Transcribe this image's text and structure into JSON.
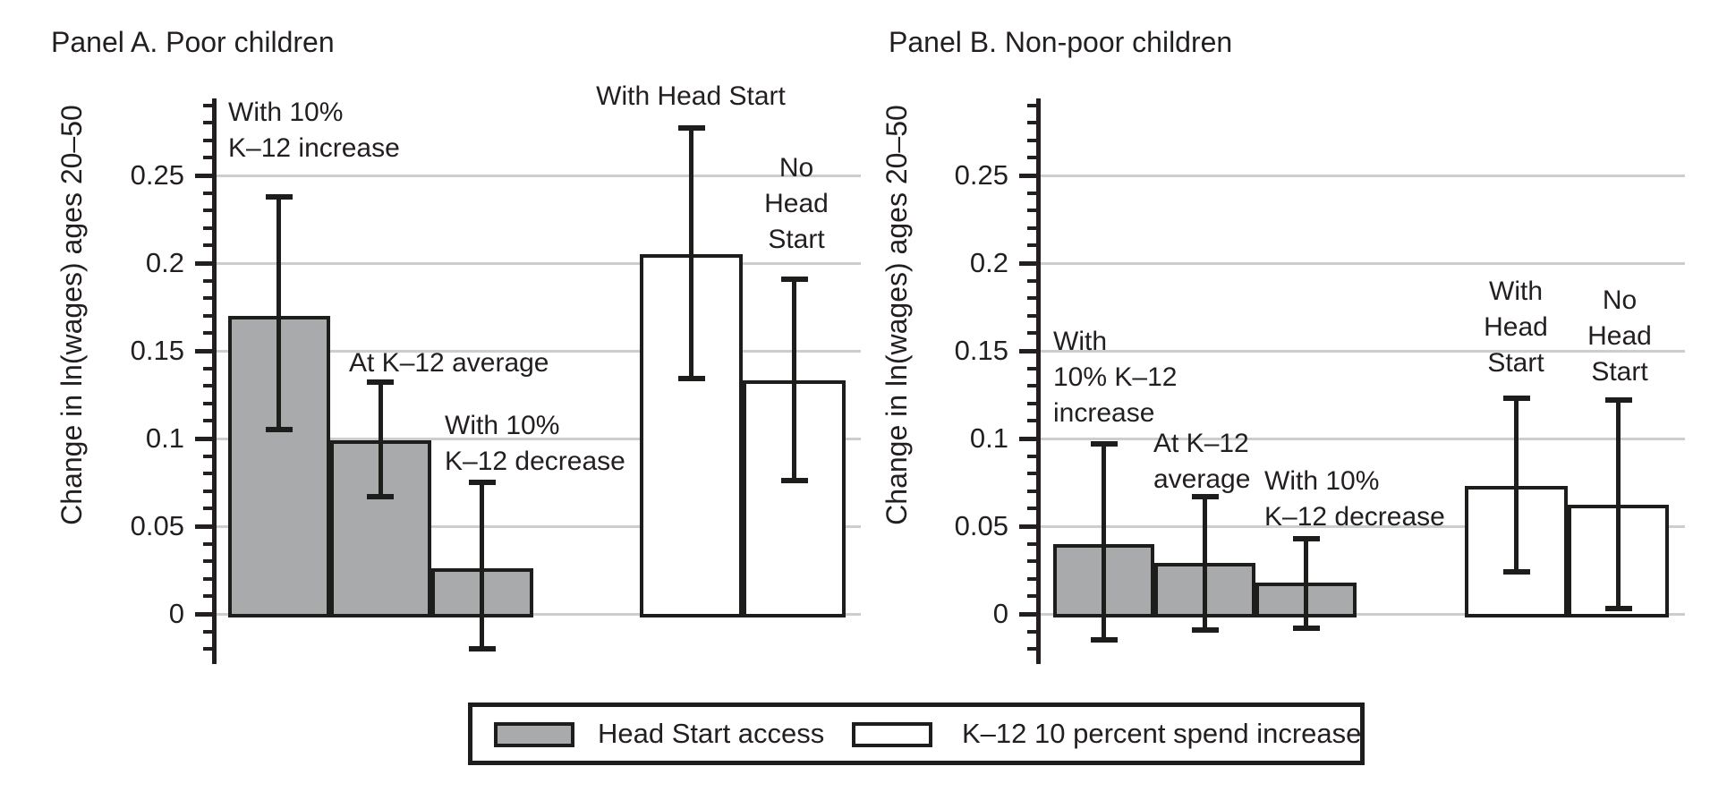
{
  "figure": {
    "background": "#ffffff",
    "text_color": "#231f20",
    "outline_color": "#1d1d1b",
    "grid_color": "#cccdcf",
    "gray_fill": "#a8aaac",
    "white_fill": "#ffffff"
  },
  "legend": {
    "items": [
      {
        "swatch": "gray",
        "label": "Head Start access"
      },
      {
        "swatch": "white",
        "label": "K–12 10 percent spend increase"
      }
    ]
  },
  "chart_data": [
    {
      "type": "bar",
      "panel": "A",
      "title": "Panel A. Poor children",
      "ylabel": "Change in ln(wages) ages 20–50",
      "ylim": [
        -0.03,
        0.293
      ],
      "grid": true,
      "yticks": [
        0,
        0.05,
        0.1,
        0.15,
        0.2,
        0.25
      ],
      "tick_labels": [
        "0",
        "0.05",
        "0.1",
        "0.15",
        "0.2",
        "0.25"
      ],
      "series": [
        {
          "name": "Head Start access",
          "fill": "gray",
          "bars": [
            {
              "label": "With 10% K–12 increase",
              "value": 0.17,
              "ci_low": 0.105,
              "ci_high": 0.238
            },
            {
              "label": "At K–12 average",
              "value": 0.099,
              "ci_low": 0.067,
              "ci_high": 0.132
            },
            {
              "label": "With 10% K–12 decrease",
              "value": 0.026,
              "ci_low": -0.02,
              "ci_high": 0.075
            }
          ]
        },
        {
          "name": "K–12 10 percent spend increase",
          "fill": "white",
          "bars": [
            {
              "label": "With Head Start",
              "value": 0.205,
              "ci_low": 0.134,
              "ci_high": 0.277
            },
            {
              "label": "No Head Start",
              "value": 0.133,
              "ci_low": 0.076,
              "ci_high": 0.191
            }
          ]
        }
      ],
      "annotations": [
        {
          "id": "a1",
          "lines": [
            "With 10%",
            "K–12 increase"
          ]
        },
        {
          "id": "a2",
          "lines": [
            "At K–12 average"
          ]
        },
        {
          "id": "a3",
          "lines": [
            "With 10%",
            "K–12 decrease"
          ]
        },
        {
          "id": "a4",
          "lines": [
            "With Head Start"
          ]
        },
        {
          "id": "a5",
          "lines": [
            "No",
            "Head",
            "Start"
          ]
        }
      ]
    },
    {
      "type": "bar",
      "panel": "B",
      "title": "Panel B. Non-poor children",
      "ylabel": "Change in ln(wages) ages 20–50",
      "ylim": [
        -0.03,
        0.293
      ],
      "grid": true,
      "yticks": [
        0,
        0.05,
        0.1,
        0.15,
        0.2,
        0.25
      ],
      "tick_labels": [
        "0",
        "0.05",
        "0.1",
        "0.15",
        "0.2",
        "0.25"
      ],
      "series": [
        {
          "name": "Head Start access",
          "fill": "gray",
          "bars": [
            {
              "label": "With 10% K–12 increase",
              "value": 0.04,
              "ci_low": -0.015,
              "ci_high": 0.097
            },
            {
              "label": "At K–12 average",
              "value": 0.029,
              "ci_low": -0.009,
              "ci_high": 0.067
            },
            {
              "label": "With 10% K–12 decrease",
              "value": 0.018,
              "ci_low": -0.008,
              "ci_high": 0.043
            }
          ]
        },
        {
          "name": "K–12 10 percent spend increase",
          "fill": "white",
          "bars": [
            {
              "label": "With Head Start",
              "value": 0.073,
              "ci_low": 0.024,
              "ci_high": 0.123
            },
            {
              "label": "No Head Start",
              "value": 0.062,
              "ci_low": 0.003,
              "ci_high": 0.122
            }
          ]
        }
      ],
      "annotations": [
        {
          "id": "b1",
          "lines": [
            "With",
            "10% K–12",
            "increase"
          ]
        },
        {
          "id": "b2",
          "lines": [
            "At K–12",
            "average"
          ]
        },
        {
          "id": "b3",
          "lines": [
            "With 10%",
            "K–12 decrease"
          ]
        },
        {
          "id": "b4",
          "lines": [
            "With",
            "Head",
            "Start"
          ]
        },
        {
          "id": "b5",
          "lines": [
            "No",
            "Head",
            "Start"
          ]
        }
      ]
    }
  ]
}
